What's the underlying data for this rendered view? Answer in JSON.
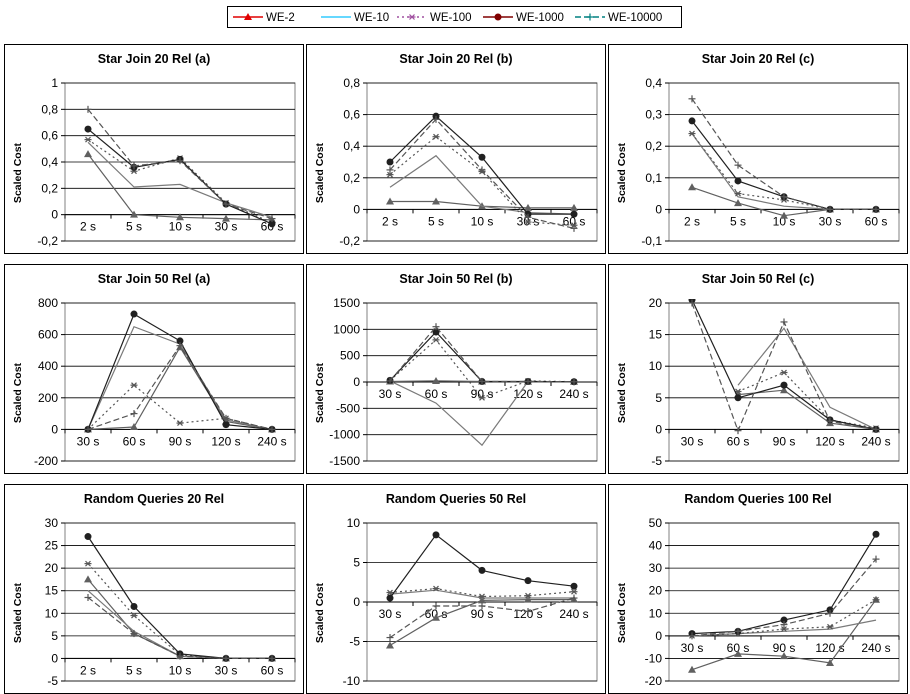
{
  "legend": [
    {
      "name": "WE-2",
      "color": "#e00000",
      "marker": "triangle",
      "dash": ""
    },
    {
      "name": "WE-10",
      "color": "#33ccff",
      "marker": "none",
      "dash": ""
    },
    {
      "name": "WE-100",
      "color": "#a050a0",
      "marker": "asterisk",
      "dash": "2,3"
    },
    {
      "name": "WE-1000",
      "color": "#800000",
      "marker": "circle",
      "dash": ""
    },
    {
      "name": "WE-10000",
      "color": "#008080",
      "marker": "plus",
      "dash": "6,3"
    }
  ],
  "chart_data": [
    {
      "type": "line",
      "title": "Star Join 20 Rel (a)",
      "ylabel": "Scaled Cost",
      "categories": [
        "2 s",
        "5 s",
        "10 s",
        "30 s",
        "60 s"
      ],
      "ylim": [
        -0.2,
        1
      ],
      "yticks": [
        -0.2,
        0,
        0.2,
        0.4,
        0.6,
        0.8,
        1
      ],
      "yticklabels": [
        "-0,2",
        "0",
        "0,2",
        "0,4",
        "0,6",
        "0,8",
        "1"
      ],
      "series": [
        {
          "name": "WE-2",
          "values": [
            0.46,
            0.0,
            -0.02,
            -0.03,
            -0.04
          ]
        },
        {
          "name": "WE-10",
          "values": [
            0.55,
            0.21,
            0.23,
            0.09,
            -0.02
          ]
        },
        {
          "name": "WE-100",
          "values": [
            0.57,
            0.33,
            0.43,
            0.09,
            -0.06
          ]
        },
        {
          "name": "WE-1000",
          "values": [
            0.65,
            0.36,
            0.42,
            0.08,
            -0.07
          ]
        },
        {
          "name": "WE-10000",
          "values": [
            0.8,
            0.37,
            0.41,
            0.08,
            -0.03
          ]
        }
      ]
    },
    {
      "type": "line",
      "title": "Star Join 20 Rel (b)",
      "ylabel": "Scaled Cost",
      "categories": [
        "2 s",
        "5 s",
        "10 s",
        "30 s",
        "60 s"
      ],
      "ylim": [
        -0.2,
        0.8
      ],
      "yticks": [
        -0.2,
        0,
        0.2,
        0.4,
        0.6,
        0.8
      ],
      "yticklabels": [
        "-0,2",
        "0",
        "0,2",
        "0,4",
        "0,6",
        "0,8"
      ],
      "series": [
        {
          "name": "WE-2",
          "values": [
            0.05,
            0.05,
            0.02,
            0.01,
            0.01
          ]
        },
        {
          "name": "WE-10",
          "values": [
            0.14,
            0.34,
            0.02,
            -0.02,
            -0.03
          ]
        },
        {
          "name": "WE-100",
          "values": [
            0.22,
            0.46,
            0.24,
            -0.08,
            -0.1
          ]
        },
        {
          "name": "WE-1000",
          "values": [
            0.3,
            0.59,
            0.33,
            -0.03,
            -0.03
          ]
        },
        {
          "name": "WE-10000",
          "values": [
            0.25,
            0.57,
            0.25,
            -0.05,
            -0.12
          ]
        }
      ]
    },
    {
      "type": "line",
      "title": "Star Join 20 Rel (c)",
      "ylabel": "Scaled Cost",
      "categories": [
        "2 s",
        "5 s",
        "10 s",
        "30 s",
        "60 s"
      ],
      "ylim": [
        -0.1,
        0.4
      ],
      "yticks": [
        -0.1,
        0,
        0.1,
        0.2,
        0.3,
        0.4
      ],
      "yticklabels": [
        "-0,1",
        "0",
        "0,1",
        "0,2",
        "0,3",
        "0,4"
      ],
      "series": [
        {
          "name": "WE-2",
          "values": [
            0.07,
            0.02,
            -0.02,
            0.0,
            0.0
          ]
        },
        {
          "name": "WE-10",
          "values": [
            0.24,
            0.04,
            0.01,
            0.0,
            0.0
          ]
        },
        {
          "name": "WE-100",
          "values": [
            0.24,
            0.05,
            0.03,
            0.0,
            0.0
          ]
        },
        {
          "name": "WE-1000",
          "values": [
            0.28,
            0.09,
            0.04,
            0.0,
            0.0
          ]
        },
        {
          "name": "WE-10000",
          "values": [
            0.35,
            0.14,
            0.04,
            0.0,
            0.0
          ]
        }
      ]
    },
    {
      "type": "line",
      "title": "Star Join 50 Rel (a)",
      "ylabel": "Scaled Cost",
      "categories": [
        "30 s",
        "60 s",
        "90 s",
        "120 s",
        "240 s"
      ],
      "ylim": [
        -200,
        800
      ],
      "yticks": [
        -200,
        0,
        200,
        400,
        600,
        800
      ],
      "yticklabels": [
        "-200",
        "0",
        "200",
        "400",
        "600",
        "800"
      ],
      "series": [
        {
          "name": "WE-2",
          "values": [
            0,
            15,
            520,
            50,
            0
          ]
        },
        {
          "name": "WE-10",
          "values": [
            0,
            650,
            540,
            60,
            0
          ]
        },
        {
          "name": "WE-100",
          "values": [
            0,
            280,
            40,
            70,
            0
          ]
        },
        {
          "name": "WE-1000",
          "values": [
            0,
            730,
            560,
            30,
            0
          ]
        },
        {
          "name": "WE-10000",
          "values": [
            0,
            100,
            530,
            70,
            0
          ]
        }
      ]
    },
    {
      "type": "line",
      "title": "Star Join 50 Rel (b)",
      "ylabel": "Scaled Cost",
      "categories": [
        "30 s",
        "60 s",
        "90 s",
        "120 s",
        "240 s"
      ],
      "ylim": [
        -1500,
        1500
      ],
      "yticks": [
        -1500,
        -1000,
        -500,
        0,
        500,
        1000,
        1500
      ],
      "yticklabels": [
        "-1500",
        "-1000",
        "-500",
        "0",
        "500",
        "1000",
        "1500"
      ],
      "series": [
        {
          "name": "WE-2",
          "values": [
            10,
            20,
            10,
            5,
            5
          ]
        },
        {
          "name": "WE-10",
          "values": [
            20,
            -400,
            -1200,
            10,
            5
          ]
        },
        {
          "name": "WE-100",
          "values": [
            30,
            800,
            -300,
            20,
            5
          ]
        },
        {
          "name": "WE-1000",
          "values": [
            30,
            950,
            10,
            10,
            5
          ]
        },
        {
          "name": "WE-10000",
          "values": [
            20,
            1050,
            10,
            10,
            5
          ]
        }
      ]
    },
    {
      "type": "line",
      "title": "Star Join 50 Rel (c)",
      "ylabel": "Scaled Cost",
      "categories": [
        "30 s",
        "60 s",
        "90 s",
        "120 s",
        "240 s"
      ],
      "ylim": [
        -5,
        20
      ],
      "yticks": [
        -5,
        0,
        5,
        10,
        15,
        20
      ],
      "yticklabels": [
        "-5",
        "0",
        "5",
        "10",
        "15",
        "20"
      ],
      "series": [
        {
          "name": "WE-2",
          "values": [
            null,
            5.5,
            6.2,
            1.0,
            0.0
          ]
        },
        {
          "name": "WE-10",
          "values": [
            null,
            7.0,
            16.0,
            3.5,
            0.0
          ]
        },
        {
          "name": "WE-100",
          "values": [
            null,
            6.0,
            9.0,
            1.5,
            0.2
          ]
        },
        {
          "name": "WE-1000",
          "values": [
            20.5,
            5.0,
            7.0,
            1.5,
            0.0
          ]
        },
        {
          "name": "WE-10000",
          "values": [
            20.0,
            -0.2,
            17.0,
            1.3,
            0.0
          ]
        }
      ]
    },
    {
      "type": "line",
      "title": "Random Queries 20 Rel",
      "ylabel": "Scaled Cost",
      "categories": [
        "2 s",
        "5 s",
        "10 s",
        "30 s",
        "60 s"
      ],
      "ylim": [
        -5,
        30
      ],
      "yticks": [
        -5,
        0,
        5,
        10,
        15,
        20,
        25,
        30
      ],
      "yticklabels": [
        "-5",
        "0",
        "5",
        "10",
        "15",
        "20",
        "25",
        "30"
      ],
      "series": [
        {
          "name": "WE-2",
          "values": [
            17.5,
            5.5,
            0.5,
            0,
            0
          ]
        },
        {
          "name": "WE-10",
          "values": [
            15.0,
            6.0,
            0.5,
            0,
            0
          ]
        },
        {
          "name": "WE-100",
          "values": [
            21.0,
            9.5,
            0.8,
            0,
            0
          ]
        },
        {
          "name": "WE-1000",
          "values": [
            27.0,
            11.5,
            1.0,
            0,
            0
          ]
        },
        {
          "name": "WE-10000",
          "values": [
            13.5,
            5.5,
            0.5,
            0,
            0
          ]
        }
      ]
    },
    {
      "type": "line",
      "title": "Random Queries 50 Rel",
      "ylabel": "Scaled Cost",
      "categories": [
        "30 s",
        "60 s",
        "90 s",
        "120 s",
        "240 s"
      ],
      "ylim": [
        -10,
        10
      ],
      "yticks": [
        -10,
        -5,
        0,
        5,
        10
      ],
      "yticklabels": [
        "-10",
        "-5",
        "0",
        "5",
        "10"
      ],
      "series": [
        {
          "name": "WE-2",
          "values": [
            -5.5,
            -2.0,
            0.2,
            0.3,
            0.3
          ]
        },
        {
          "name": "WE-10",
          "values": [
            1.0,
            1.5,
            0.5,
            0.5,
            0.5
          ]
        },
        {
          "name": "WE-100",
          "values": [
            1.2,
            1.7,
            0.7,
            0.8,
            1.3
          ]
        },
        {
          "name": "WE-1000",
          "values": [
            0.5,
            8.5,
            4.0,
            2.7,
            2.0
          ]
        },
        {
          "name": "WE-10000",
          "values": [
            -4.5,
            -0.5,
            -0.5,
            -1.2,
            0.5
          ]
        }
      ]
    },
    {
      "type": "line",
      "title": "Random Queries 100 Rel",
      "ylabel": "Scaled Cost",
      "categories": [
        "30 s",
        "60 s",
        "90 s",
        "120 s",
        "240 s"
      ],
      "ylim": [
        -20,
        50
      ],
      "yticks": [
        -20,
        -10,
        0,
        10,
        20,
        30,
        40,
        50
      ],
      "yticklabels": [
        "-20",
        "-10",
        "0",
        "10",
        "20",
        "30",
        "40",
        "50"
      ],
      "series": [
        {
          "name": "WE-2",
          "values": [
            -15,
            -8,
            -9,
            -12,
            16
          ]
        },
        {
          "name": "WE-10",
          "values": [
            0,
            1,
            2,
            3,
            7
          ]
        },
        {
          "name": "WE-100",
          "values": [
            0,
            1,
            3,
            4,
            16
          ]
        },
        {
          "name": "WE-1000",
          "values": [
            1,
            2,
            7,
            11.5,
            45
          ]
        },
        {
          "name": "WE-10000",
          "values": [
            0,
            2,
            5,
            10,
            34
          ]
        }
      ]
    }
  ]
}
